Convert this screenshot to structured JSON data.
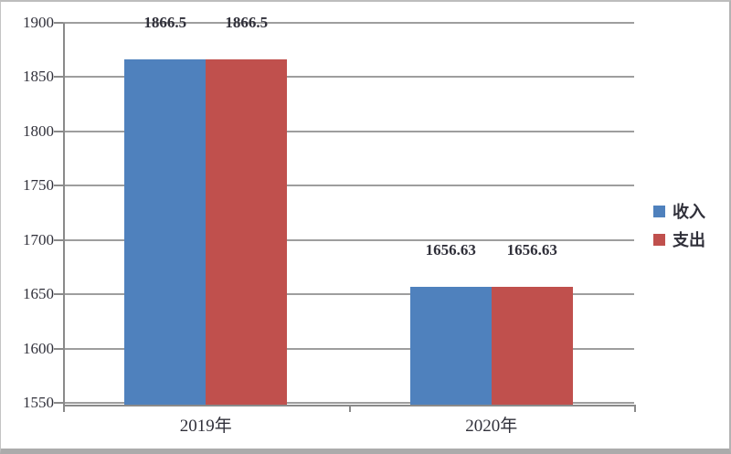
{
  "chart_data": {
    "type": "bar",
    "categories": [
      "2019年",
      "2020年"
    ],
    "series": [
      {
        "name": "收入",
        "color": "#4F81BD",
        "values": [
          1866.5,
          1656.63
        ],
        "labels": [
          "1866.5",
          "1656.63"
        ]
      },
      {
        "name": "支出",
        "color": "#C0504D",
        "values": [
          1866.5,
          1656.63
        ],
        "labels": [
          "1866.5",
          "1656.63"
        ]
      }
    ],
    "ylim": [
      1550,
      1900
    ],
    "yticks": [
      1550,
      1600,
      1650,
      1700,
      1750,
      1800,
      1850,
      1900
    ],
    "grid": true,
    "legend_position": "right"
  },
  "colors": {
    "gridline": "#9e9e9e",
    "axis": "#8a8a8a",
    "text": "#30303a",
    "frame_border": "#ababab",
    "background": "#ffffff"
  }
}
